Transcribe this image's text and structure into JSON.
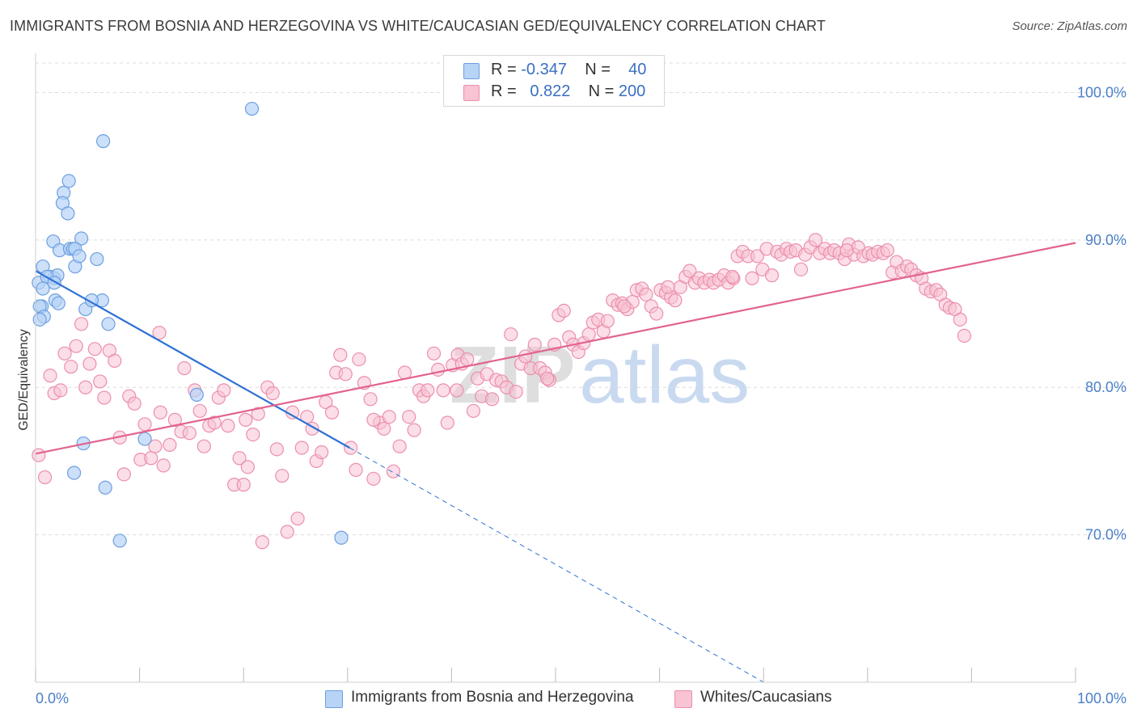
{
  "title": "IMMIGRANTS FROM BOSNIA AND HERZEGOVINA VS WHITE/CAUCASIAN GED/EQUIVALENCY CORRELATION CHART",
  "source": "Source: ZipAtlas.com",
  "watermark": {
    "zip": "ZIP",
    "atlas": "atlas"
  },
  "colors": {
    "blue_fill": "#b7d3f6",
    "blue_stroke": "#6d9fe0",
    "blue_line": "#2f72d4",
    "pink_fill": "#f8c3d3",
    "pink_stroke": "#ec8fac",
    "pink_line": "#e2638f",
    "tick_text": "#4a7fc8",
    "grid": "#dcdcdc"
  },
  "legend": {
    "rows": [
      {
        "r_label": "R =",
        "r_value": "-0.347",
        "n_label": "N =",
        "n_value": "40"
      },
      {
        "r_label": "R =",
        "r_value": "0.822",
        "n_label": "N =",
        "n_value": "200"
      }
    ]
  },
  "bottom_legend": {
    "series1": "Immigrants from Bosnia and Herzegovina",
    "series2": "Whites/Caucasians"
  },
  "chart_data": {
    "type": "scatter",
    "title": "IMMIGRANTS FROM BOSNIA AND HERZEGOVINA VS WHITE/CAUCASIAN GED/EQUIVALENCY CORRELATION CHART",
    "xlabel": "",
    "ylabel": "GED/Equivalency",
    "xlim": [
      0,
      100
    ],
    "ylim": [
      60.0,
      102.0
    ],
    "x_tick_labels": [
      "0.0%",
      "100.0%"
    ],
    "y_ticks": [
      70,
      80,
      90,
      100
    ],
    "y_tick_labels": [
      "70.0%",
      "80.0%",
      "90.0%",
      "100.0%"
    ],
    "grid": true,
    "legend_position": "top-center",
    "series": [
      {
        "name": "Immigrants from Bosnia and Herzegovina",
        "color": "#b7d3f6",
        "points": [
          [
            20.8,
            98.9
          ],
          [
            6.5,
            96.7
          ],
          [
            3.2,
            94.0
          ],
          [
            2.7,
            93.2
          ],
          [
            2.6,
            92.5
          ],
          [
            3.1,
            91.8
          ],
          [
            1.7,
            89.9
          ],
          [
            4.4,
            90.1
          ],
          [
            2.3,
            89.3
          ],
          [
            3.3,
            89.4
          ],
          [
            3.6,
            89.4
          ],
          [
            3.8,
            89.4
          ],
          [
            5.9,
            88.7
          ],
          [
            3.8,
            88.2
          ],
          [
            0.7,
            88.2
          ],
          [
            1.4,
            87.5
          ],
          [
            1.8,
            87.4
          ],
          [
            2.1,
            87.6
          ],
          [
            0.3,
            87.1
          ],
          [
            1.1,
            87.5
          ],
          [
            0.7,
            86.7
          ],
          [
            1.8,
            87.1
          ],
          [
            1.9,
            85.9
          ],
          [
            2.2,
            85.7
          ],
          [
            6.4,
            85.9
          ],
          [
            0.6,
            85.5
          ],
          [
            0.4,
            85.5
          ],
          [
            0.8,
            84.8
          ],
          [
            4.8,
            85.3
          ],
          [
            7.0,
            84.3
          ],
          [
            0.4,
            84.6
          ],
          [
            5.4,
            85.9
          ],
          [
            15.5,
            79.5
          ],
          [
            10.5,
            76.5
          ],
          [
            4.6,
            76.2
          ],
          [
            3.7,
            74.2
          ],
          [
            6.7,
            73.2
          ],
          [
            8.1,
            69.6
          ],
          [
            29.4,
            69.8
          ],
          [
            4.2,
            88.9
          ]
        ]
      },
      {
        "name": "Whites/Caucasians",
        "color": "#f8c3d3",
        "points": [
          [
            0.3,
            75.4
          ],
          [
            0.9,
            73.9
          ],
          [
            1.4,
            80.8
          ],
          [
            1.8,
            79.6
          ],
          [
            2.4,
            79.8
          ],
          [
            2.8,
            82.3
          ],
          [
            3.4,
            81.4
          ],
          [
            3.9,
            82.8
          ],
          [
            4.4,
            84.3
          ],
          [
            4.8,
            80.0
          ],
          [
            5.2,
            81.6
          ],
          [
            5.7,
            82.6
          ],
          [
            6.2,
            80.4
          ],
          [
            6.6,
            79.3
          ],
          [
            7.1,
            82.5
          ],
          [
            7.6,
            81.8
          ],
          [
            8.1,
            76.6
          ],
          [
            8.5,
            74.1
          ],
          [
            9.0,
            79.4
          ],
          [
            9.5,
            78.9
          ],
          [
            10.1,
            75.1
          ],
          [
            10.5,
            77.5
          ],
          [
            11.1,
            75.2
          ],
          [
            11.5,
            76.0
          ],
          [
            11.9,
            83.7
          ],
          [
            12.3,
            74.7
          ],
          [
            12.9,
            76.1
          ],
          [
            13.4,
            77.8
          ],
          [
            14.0,
            77.0
          ],
          [
            14.3,
            81.3
          ],
          [
            14.8,
            76.9
          ],
          [
            15.3,
            79.8
          ],
          [
            15.8,
            78.4
          ],
          [
            16.2,
            76.0
          ],
          [
            16.7,
            77.4
          ],
          [
            17.2,
            77.6
          ],
          [
            17.6,
            79.3
          ],
          [
            18.1,
            79.8
          ],
          [
            18.5,
            77.4
          ],
          [
            19.1,
            73.4
          ],
          [
            19.6,
            75.2
          ],
          [
            20.0,
            73.4
          ],
          [
            20.4,
            74.6
          ],
          [
            20.9,
            76.8
          ],
          [
            21.4,
            78.2
          ],
          [
            21.8,
            69.5
          ],
          [
            22.3,
            80.0
          ],
          [
            22.8,
            79.6
          ],
          [
            23.2,
            75.8
          ],
          [
            23.7,
            74.0
          ],
          [
            24.2,
            70.2
          ],
          [
            24.7,
            78.3
          ],
          [
            25.2,
            71.1
          ],
          [
            25.6,
            75.9
          ],
          [
            26.1,
            78.0
          ],
          [
            26.6,
            77.2
          ],
          [
            27.0,
            75.0
          ],
          [
            27.5,
            75.6
          ],
          [
            27.9,
            79.0
          ],
          [
            28.5,
            78.3
          ],
          [
            28.9,
            81.0
          ],
          [
            29.3,
            82.2
          ],
          [
            29.8,
            80.9
          ],
          [
            30.3,
            75.9
          ],
          [
            30.8,
            74.4
          ],
          [
            31.1,
            81.9
          ],
          [
            31.6,
            80.3
          ],
          [
            32.2,
            79.2
          ],
          [
            32.5,
            73.8
          ],
          [
            33.1,
            77.6
          ],
          [
            33.5,
            77.2
          ],
          [
            34.0,
            78.0
          ],
          [
            34.4,
            74.3
          ],
          [
            35.0,
            76.0
          ],
          [
            35.5,
            81.0
          ],
          [
            35.9,
            78.0
          ],
          [
            36.4,
            77.1
          ],
          [
            36.9,
            79.8
          ],
          [
            37.3,
            79.4
          ],
          [
            37.7,
            79.8
          ],
          [
            38.3,
            82.3
          ],
          [
            38.7,
            81.2
          ],
          [
            39.2,
            79.8
          ],
          [
            39.6,
            77.6
          ],
          [
            40.1,
            81.5
          ],
          [
            40.6,
            82.2
          ],
          [
            41.0,
            81.6
          ],
          [
            41.5,
            81.9
          ],
          [
            42.1,
            78.4
          ],
          [
            42.5,
            80.6
          ],
          [
            42.9,
            79.4
          ],
          [
            43.4,
            80.9
          ],
          [
            43.9,
            79.2
          ],
          [
            44.3,
            80.5
          ],
          [
            44.8,
            80.4
          ],
          [
            45.3,
            80.0
          ],
          [
            45.7,
            83.6
          ],
          [
            46.2,
            79.7
          ],
          [
            46.7,
            81.6
          ],
          [
            47.1,
            82.1
          ],
          [
            47.6,
            81.3
          ],
          [
            48.0,
            82.9
          ],
          [
            48.5,
            81.3
          ],
          [
            49.0,
            81.0
          ],
          [
            49.4,
            80.5
          ],
          [
            49.9,
            82.9
          ],
          [
            50.3,
            84.9
          ],
          [
            50.8,
            85.2
          ],
          [
            51.3,
            83.4
          ],
          [
            51.7,
            82.9
          ],
          [
            52.2,
            82.4
          ],
          [
            52.7,
            83.0
          ],
          [
            53.2,
            83.6
          ],
          [
            53.6,
            84.4
          ],
          [
            54.1,
            84.6
          ],
          [
            54.6,
            83.8
          ],
          [
            55.0,
            84.5
          ],
          [
            55.5,
            85.9
          ],
          [
            56.0,
            85.6
          ],
          [
            56.4,
            85.7
          ],
          [
            56.9,
            85.3
          ],
          [
            57.4,
            85.8
          ],
          [
            57.8,
            86.6
          ],
          [
            58.3,
            86.7
          ],
          [
            58.7,
            86.3
          ],
          [
            59.2,
            85.5
          ],
          [
            59.7,
            85.0
          ],
          [
            60.1,
            86.6
          ],
          [
            60.6,
            86.4
          ],
          [
            61.1,
            86.1
          ],
          [
            61.5,
            85.9
          ],
          [
            62.0,
            86.8
          ],
          [
            62.5,
            87.5
          ],
          [
            62.9,
            87.9
          ],
          [
            63.4,
            87.1
          ],
          [
            63.8,
            87.4
          ],
          [
            64.3,
            87.1
          ],
          [
            64.8,
            87.3
          ],
          [
            65.2,
            87.1
          ],
          [
            65.7,
            87.3
          ],
          [
            66.2,
            87.6
          ],
          [
            66.6,
            87.1
          ],
          [
            67.1,
            87.4
          ],
          [
            67.5,
            88.9
          ],
          [
            68.0,
            89.2
          ],
          [
            68.5,
            88.9
          ],
          [
            68.9,
            87.4
          ],
          [
            69.4,
            88.9
          ],
          [
            69.9,
            88.0
          ],
          [
            70.3,
            89.4
          ],
          [
            70.8,
            87.6
          ],
          [
            71.3,
            89.2
          ],
          [
            71.7,
            89.0
          ],
          [
            72.2,
            89.4
          ],
          [
            72.6,
            89.2
          ],
          [
            73.1,
            89.3
          ],
          [
            73.6,
            88.0
          ],
          [
            74.0,
            89.0
          ],
          [
            74.5,
            89.5
          ],
          [
            75.0,
            90.0
          ],
          [
            75.4,
            89.1
          ],
          [
            75.9,
            89.4
          ],
          [
            76.4,
            89.1
          ],
          [
            76.8,
            89.3
          ],
          [
            77.3,
            89.1
          ],
          [
            77.8,
            88.7
          ],
          [
            78.2,
            89.7
          ],
          [
            78.7,
            89.0
          ],
          [
            79.1,
            89.5
          ],
          [
            79.6,
            88.9
          ],
          [
            80.1,
            89.1
          ],
          [
            80.5,
            89.0
          ],
          [
            81.0,
            89.2
          ],
          [
            81.5,
            89.1
          ],
          [
            81.9,
            89.3
          ],
          [
            82.4,
            87.8
          ],
          [
            82.8,
            88.5
          ],
          [
            83.3,
            87.9
          ],
          [
            83.8,
            88.2
          ],
          [
            84.2,
            88.0
          ],
          [
            84.7,
            87.6
          ],
          [
            85.2,
            87.4
          ],
          [
            85.6,
            86.7
          ],
          [
            86.1,
            86.5
          ],
          [
            86.6,
            86.6
          ],
          [
            87.0,
            86.3
          ],
          [
            87.5,
            85.6
          ],
          [
            87.9,
            85.4
          ],
          [
            88.4,
            85.3
          ],
          [
            88.9,
            84.6
          ],
          [
            89.3,
            83.5
          ],
          [
            56.6,
            85.5
          ],
          [
            32.5,
            77.8
          ],
          [
            49.2,
            80.6
          ],
          [
            67.0,
            87.5
          ],
          [
            78.0,
            89.3
          ],
          [
            60.8,
            86.8
          ],
          [
            40.5,
            79.8
          ],
          [
            20.2,
            77.8
          ],
          [
            12.0,
            78.3
          ]
        ]
      }
    ],
    "trend_lines": [
      {
        "series": "Immigrants from Bosnia and Herzegovina",
        "style": "solid",
        "from": [
          0,
          87.9
        ],
        "to": [
          30.2,
          75.9
        ]
      },
      {
        "series": "Immigrants from Bosnia and Herzegovina",
        "style": "dashed",
        "from": [
          30.2,
          75.9
        ],
        "to": [
          70.0,
          60.0
        ]
      },
      {
        "series": "Whites/Caucasians",
        "style": "solid",
        "from": [
          0,
          75.5
        ],
        "to": [
          100,
          89.8
        ]
      }
    ]
  }
}
